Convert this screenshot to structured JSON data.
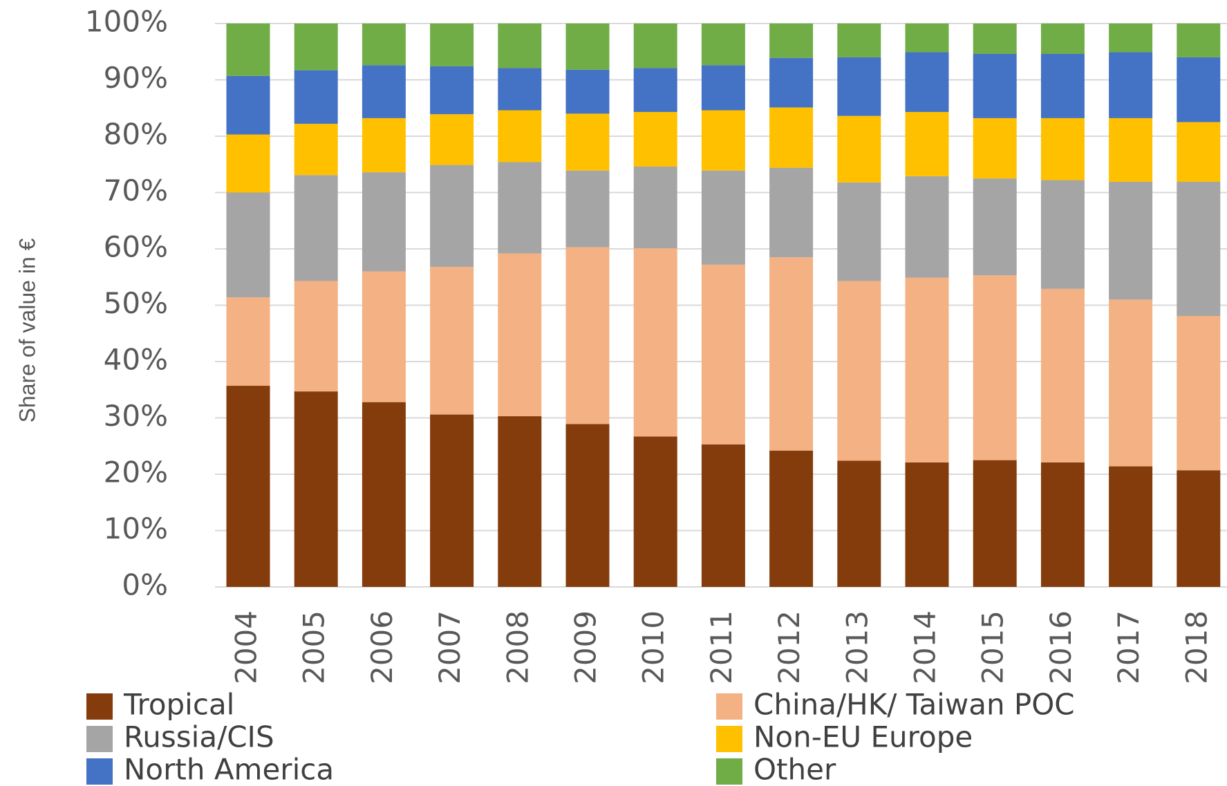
{
  "chart_data": {
    "type": "stacked_bar",
    "y_label": "Share of value in €",
    "categories": [
      "2004",
      "2005",
      "2006",
      "2007",
      "2008",
      "2009",
      "2010",
      "2011",
      "2012",
      "2013",
      "2014",
      "2015",
      "2016",
      "2017",
      "2018"
    ],
    "series": [
      {
        "name": "Tropical",
        "color": "#843c0c",
        "values": [
          35.7,
          34.7,
          32.8,
          30.6,
          30.3,
          28.9,
          26.7,
          25.3,
          24.2,
          22.4,
          22.1,
          22.5,
          22.1,
          21.4,
          20.7
        ]
      },
      {
        "name": "China/HK/ Taiwan POC",
        "color": "#f4b183",
        "values": [
          15.7,
          19.6,
          23.2,
          26.2,
          28.9,
          31.4,
          33.4,
          31.9,
          34.3,
          31.9,
          32.8,
          32.8,
          30.8,
          29.6,
          27.4
        ]
      },
      {
        "name": "Russia/CIS",
        "color": "#a5a5a5",
        "values": [
          18.6,
          18.8,
          17.6,
          18.1,
          16.2,
          13.6,
          14.5,
          16.7,
          15.9,
          17.5,
          18.0,
          17.2,
          19.3,
          20.9,
          23.8
        ]
      },
      {
        "name": "Non-EU Europe",
        "color": "#ffc000",
        "values": [
          10.3,
          9.1,
          9.6,
          9.0,
          9.2,
          10.1,
          9.7,
          10.7,
          10.7,
          11.8,
          11.4,
          10.7,
          11.0,
          11.3,
          10.6
        ]
      },
      {
        "name": "North America",
        "color": "#4472c4",
        "values": [
          10.4,
          9.5,
          9.4,
          8.5,
          7.5,
          7.8,
          7.8,
          8.0,
          8.8,
          10.4,
          10.6,
          11.4,
          11.4,
          11.7,
          11.5
        ]
      },
      {
        "name": "Other",
        "color": "#70ad47",
        "values": [
          9.3,
          8.3,
          7.4,
          7.6,
          7.9,
          8.2,
          7.9,
          7.4,
          6.1,
          6.0,
          5.1,
          5.4,
          5.4,
          5.1,
          6.0
        ]
      }
    ],
    "ylim": [
      0,
      100
    ],
    "yticks": [
      {
        "value": 0,
        "label": "0%"
      },
      {
        "value": 10,
        "label": "10%"
      },
      {
        "value": 20,
        "label": "20%"
      },
      {
        "value": 30,
        "label": "30%"
      },
      {
        "value": 40,
        "label": "40%"
      },
      {
        "value": 50,
        "label": "50%"
      },
      {
        "value": 60,
        "label": "60%"
      },
      {
        "value": 70,
        "label": "70%"
      },
      {
        "value": 80,
        "label": "80%"
      },
      {
        "value": 90,
        "label": "90%"
      },
      {
        "value": 100,
        "label": "100%"
      }
    ],
    "grid": true,
    "legend": "bottom"
  }
}
